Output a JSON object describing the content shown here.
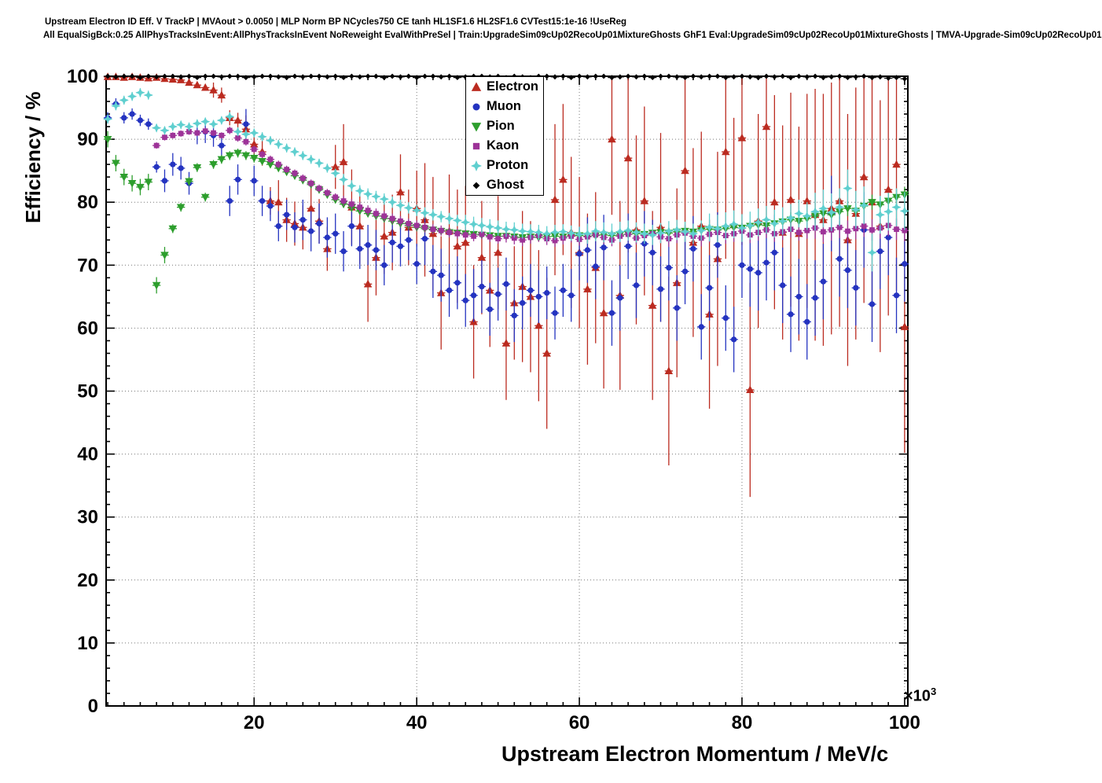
{
  "chart_data": {
    "type": "scatter",
    "title_line1": "Upstream Electron ID Eff. V TrackP | MVAout > 0.0050 | MLP Norm BP NCycles750 CE tanh HL1SF1.6 HL2SF1.6 CVTest15:1e-16 !UseReg",
    "title_line2": "All EqualSigBck:0.25 AllPhysTracksInEvent:AllPhysTracksInEvent NoReweight EvalWithPreSel | Train:UpgradeSim09cUp02RecoUp01MixtureGhosts GhF1 Eval:UpgradeSim09cUp02RecoUp01MixtureGhosts | TMVA-Upgrade-Sim09cUp02RecoUp01",
    "xlabel": "Upstream Electron Momentum / MeV/c",
    "xlabel_multiplier": "×10",
    "xlabel_multiplier_exp": "3",
    "ylabel": "Efficiency / %",
    "xlim": [
      1.8,
      100.4
    ],
    "ylim": [
      0,
      100
    ],
    "x_ticks": [
      20,
      40,
      60,
      80,
      100
    ],
    "y_ticks": [
      0,
      10,
      20,
      30,
      40,
      50,
      60,
      70,
      80,
      90,
      100
    ],
    "x_minor_step": 2,
    "y_minor_step": 2,
    "grid": "dotted",
    "legend_position": "top-right",
    "series": [
      {
        "name": "Electron",
        "marker": "triangle-up",
        "color": "#bb2b20",
        "x0": 2,
        "dx": 1,
        "bin_halfwidth": 0.5,
        "y": [
          99.9,
          99.9,
          99.8,
          99.9,
          99.8,
          99.7,
          99.8,
          99.6,
          99.5,
          99.4,
          99.0,
          98.6,
          98.2,
          97.8,
          97.0,
          93.4,
          93.0,
          91.6,
          89.2,
          88.0,
          80.2,
          80.0,
          77.2,
          76.6,
          76.0,
          79.0,
          77.0,
          72.6,
          85.6,
          86.4,
          79.2,
          76.2,
          67.0,
          71.2,
          74.6,
          75.2,
          81.6,
          76.0,
          79.0,
          77.2,
          75.0,
          65.6,
          75.4,
          73.0,
          73.6,
          61.0,
          71.2,
          66.0,
          72.0,
          57.6,
          64.0,
          66.6,
          65.0,
          60.4,
          56.0,
          80.4,
          83.6,
          75.2,
          72.0,
          66.2,
          69.6,
          62.4,
          90.0,
          65.2,
          87.0,
          75.6,
          80.2,
          63.6,
          76.0,
          53.2,
          67.2,
          85.0,
          73.6,
          76.2,
          62.2,
          71.0,
          88.0,
          76.4,
          90.2,
          50.2,
          77.0,
          92.0,
          80.0,
          75.2,
          80.4,
          75.0,
          80.2,
          78.0,
          77.2,
          79.0,
          80.2,
          74.0,
          78.2,
          84.0,
          80.0,
          76.2,
          82.0,
          86.0,
          60.2
        ],
        "err_steps": [
          [
            14,
            0.3
          ],
          [
            18,
            1.2
          ],
          [
            22,
            2.2
          ],
          [
            30,
            3.5
          ],
          [
            40,
            6
          ],
          [
            52,
            9
          ],
          [
            64,
            12
          ],
          [
            76,
            15
          ],
          [
            88,
            17
          ],
          [
            101,
            20
          ]
        ]
      },
      {
        "name": "Muon",
        "marker": "circle",
        "color": "#2433c0",
        "x0": 2,
        "dx": 1,
        "bin_halfwidth": 0.5,
        "y": [
          93.4,
          95.6,
          93.4,
          94.0,
          93.0,
          92.4,
          85.6,
          83.4,
          86.0,
          85.4,
          83.0,
          91.0,
          91.2,
          90.6,
          89.0,
          80.2,
          83.6,
          92.4,
          83.4,
          80.2,
          79.4,
          76.2,
          78.0,
          76.0,
          77.2,
          75.4,
          76.6,
          74.4,
          75.0,
          72.2,
          76.2,
          72.6,
          73.2,
          72.4,
          70.0,
          73.6,
          73.0,
          74.0,
          70.2,
          74.2,
          69.0,
          68.4,
          66.0,
          67.2,
          64.4,
          65.2,
          66.6,
          63.0,
          65.4,
          67.0,
          62.0,
          64.0,
          66.0,
          65.0,
          65.6,
          62.4,
          66.0,
          65.2,
          71.8,
          72.4,
          69.8,
          72.8,
          62.4,
          64.8,
          73.0,
          66.8,
          73.4,
          72.0,
          66.2,
          69.6,
          63.2,
          69.0,
          72.6,
          60.2,
          66.4,
          73.2,
          61.6,
          58.2,
          70.0,
          69.4,
          68.8,
          70.4,
          72.0,
          66.8,
          62.2,
          65.0,
          61.0,
          64.8,
          67.4,
          78.2,
          71.0,
          69.2,
          66.4,
          75.6,
          63.8,
          72.2,
          74.4,
          65.2,
          70.2
        ],
        "err_steps": [
          [
            8,
            0.9
          ],
          [
            16,
            1.8
          ],
          [
            25,
            2.4
          ],
          [
            40,
            3.2
          ],
          [
            60,
            4.2
          ],
          [
            80,
            5.2
          ],
          [
            101,
            6.0
          ]
        ]
      },
      {
        "name": "Pion",
        "marker": "triangle-down",
        "color": "#2d9e2d",
        "x0": 2,
        "dx": 1,
        "bin_halfwidth": 0.5,
        "y": [
          90.0,
          86.2,
          84.0,
          83.0,
          82.4,
          83.2,
          66.8,
          71.6,
          75.8,
          79.2,
          83.3,
          85.5,
          80.8,
          86.0,
          86.8,
          87.4,
          87.8,
          87.4,
          87.0,
          86.5,
          86.0,
          85.4,
          84.8,
          84.2,
          83.5,
          82.8,
          82.0,
          81.2,
          80.4,
          79.7,
          79.1,
          78.6,
          78.2,
          77.8,
          77.4,
          77.0,
          76.6,
          76.3,
          76.0,
          75.8,
          75.6,
          75.4,
          75.2,
          75.1,
          75.0,
          74.9,
          74.8,
          74.7,
          74.6,
          74.6,
          74.5,
          74.4,
          74.5,
          74.4,
          74.5,
          74.6,
          74.5,
          74.6,
          74.7,
          74.6,
          74.7,
          74.8,
          74.7,
          74.8,
          74.9,
          75.0,
          74.9,
          75.1,
          75.2,
          75.1,
          75.3,
          75.4,
          75.3,
          75.5,
          75.7,
          75.6,
          75.8,
          76.0,
          75.9,
          76.2,
          76.4,
          76.3,
          76.6,
          76.9,
          77.2,
          77.0,
          77.4,
          77.8,
          78.2,
          78.0,
          78.5,
          79.0,
          78.6,
          79.4,
          80.0,
          79.6,
          80.2,
          80.8,
          81.2
        ],
        "err_steps": [
          [
            9,
            1.3
          ],
          [
            20,
            0.7
          ],
          [
            60,
            0.5
          ],
          [
            85,
            0.8
          ],
          [
            101,
            1.2
          ]
        ]
      },
      {
        "name": "Kaon",
        "marker": "square",
        "color": "#9d3398",
        "x0": 8,
        "dx": 1,
        "bin_halfwidth": 0.5,
        "y": [
          89.0,
          90.3,
          90.6,
          90.9,
          91.2,
          91.0,
          91.3,
          91.0,
          90.6,
          91.4,
          90.2,
          89.6,
          88.4,
          87.6,
          86.8,
          86.0,
          85.2,
          84.6,
          83.8,
          83.0,
          82.2,
          81.5,
          80.8,
          80.2,
          79.7,
          79.2,
          78.7,
          78.2,
          77.8,
          77.4,
          77.0,
          76.6,
          76.3,
          76.0,
          75.7,
          75.5,
          75.2,
          75.0,
          74.8,
          74.6,
          74.9,
          74.5,
          74.2,
          74.6,
          74.3,
          74.0,
          74.4,
          74.7,
          74.2,
          73.9,
          74.3,
          74.6,
          74.1,
          74.5,
          74.8,
          74.4,
          74.0,
          74.6,
          74.9,
          74.3,
          74.7,
          75.0,
          74.5,
          74.2,
          74.8,
          75.1,
          74.6,
          74.3,
          74.9,
          75.2,
          74.7,
          75.0,
          75.4,
          74.8,
          75.2,
          75.6,
          75.0,
          75.3,
          75.7,
          75.2,
          75.5,
          75.9,
          75.3,
          75.6,
          76.0,
          75.4,
          75.8,
          76.2,
          75.6,
          75.9,
          76.3,
          75.7,
          75.5
        ],
        "err_steps": [
          [
            16,
            0.5
          ],
          [
            30,
            0.6
          ],
          [
            50,
            0.8
          ],
          [
            70,
            1.0
          ],
          [
            88,
            1.3
          ],
          [
            101,
            1.7
          ]
        ]
      },
      {
        "name": "Proton",
        "marker": "star4",
        "color": "#5fcfcf",
        "x0": 2,
        "dx": 1,
        "bin_halfwidth": 0.5,
        "y": [
          93.2,
          95.3,
          96.2,
          96.8,
          97.4,
          97.0,
          91.8,
          91.4,
          92.0,
          92.3,
          92.0,
          92.5,
          92.8,
          92.4,
          93.0,
          93.6,
          91.2,
          90.8,
          91.0,
          90.4,
          89.8,
          89.2,
          88.6,
          88.0,
          87.4,
          86.8,
          86.2,
          85.4,
          84.6,
          83.6,
          82.6,
          81.8,
          81.3,
          80.9,
          80.5,
          80.0,
          79.5,
          79.1,
          78.7,
          78.3,
          78.0,
          77.7,
          77.4,
          77.1,
          76.8,
          76.5,
          76.3,
          76.1,
          75.9,
          75.7,
          75.6,
          75.4,
          75.3,
          75.2,
          75.0,
          75.2,
          75.3,
          75.1,
          74.9,
          75.0,
          75.4,
          75.2,
          75.0,
          75.3,
          75.5,
          75.2,
          75.0,
          74.8,
          75.1,
          75.4,
          75.6,
          75.3,
          75.0,
          75.5,
          76.0,
          75.8,
          76.2,
          76.5,
          75.9,
          76.3,
          76.8,
          77.2,
          76.6,
          77.0,
          77.5,
          78.2,
          77.8,
          78.5,
          79.0,
          78.4,
          79.2,
          82.2,
          78.8,
          79.5,
          72.0,
          78.0,
          78.5,
          79.2,
          78.6
        ],
        "err_steps": [
          [
            7,
            0.7
          ],
          [
            16,
            0.6
          ],
          [
            30,
            0.7
          ],
          [
            45,
            0.9
          ],
          [
            60,
            1.2
          ],
          [
            75,
            1.6
          ],
          [
            88,
            2.2
          ],
          [
            101,
            3.0
          ]
        ]
      },
      {
        "name": "Ghost",
        "marker": "diamond",
        "color": "#000000",
        "x0": 2,
        "dx": 1,
        "bin_halfwidth": 0.5,
        "y": [
          100,
          99.9,
          100,
          100,
          99.8,
          100,
          99.9,
          100,
          100,
          99.9,
          100,
          99.8,
          100,
          100,
          99.9,
          100,
          100,
          99.8,
          99.9,
          100,
          100,
          99.9,
          99.8,
          100,
          99.9,
          100,
          100,
          99.9,
          100,
          99.8,
          100,
          99.9,
          100,
          100,
          99.8,
          100,
          99.9,
          100,
          99.8,
          100,
          100,
          99.9,
          100,
          99.8,
          99.9,
          100,
          100,
          99.9,
          100,
          99.8,
          100,
          99.9,
          99.8,
          100,
          100,
          99.9,
          100,
          99.8,
          100,
          99.9,
          100,
          100,
          99.8,
          99.9,
          100,
          99.9,
          100,
          99.8,
          100,
          100,
          99.9,
          99.8,
          100,
          99.9,
          100,
          100,
          99.8,
          99.9,
          100,
          99.9,
          99.8,
          100,
          99.9,
          100,
          99.8,
          100,
          99.9,
          100,
          99.8,
          99.9,
          100,
          99.8,
          99.9,
          100,
          99.8,
          99.9,
          99.7,
          99.8,
          99.6
        ],
        "err_steps": [
          [
            101,
            0.2
          ]
        ]
      }
    ]
  }
}
